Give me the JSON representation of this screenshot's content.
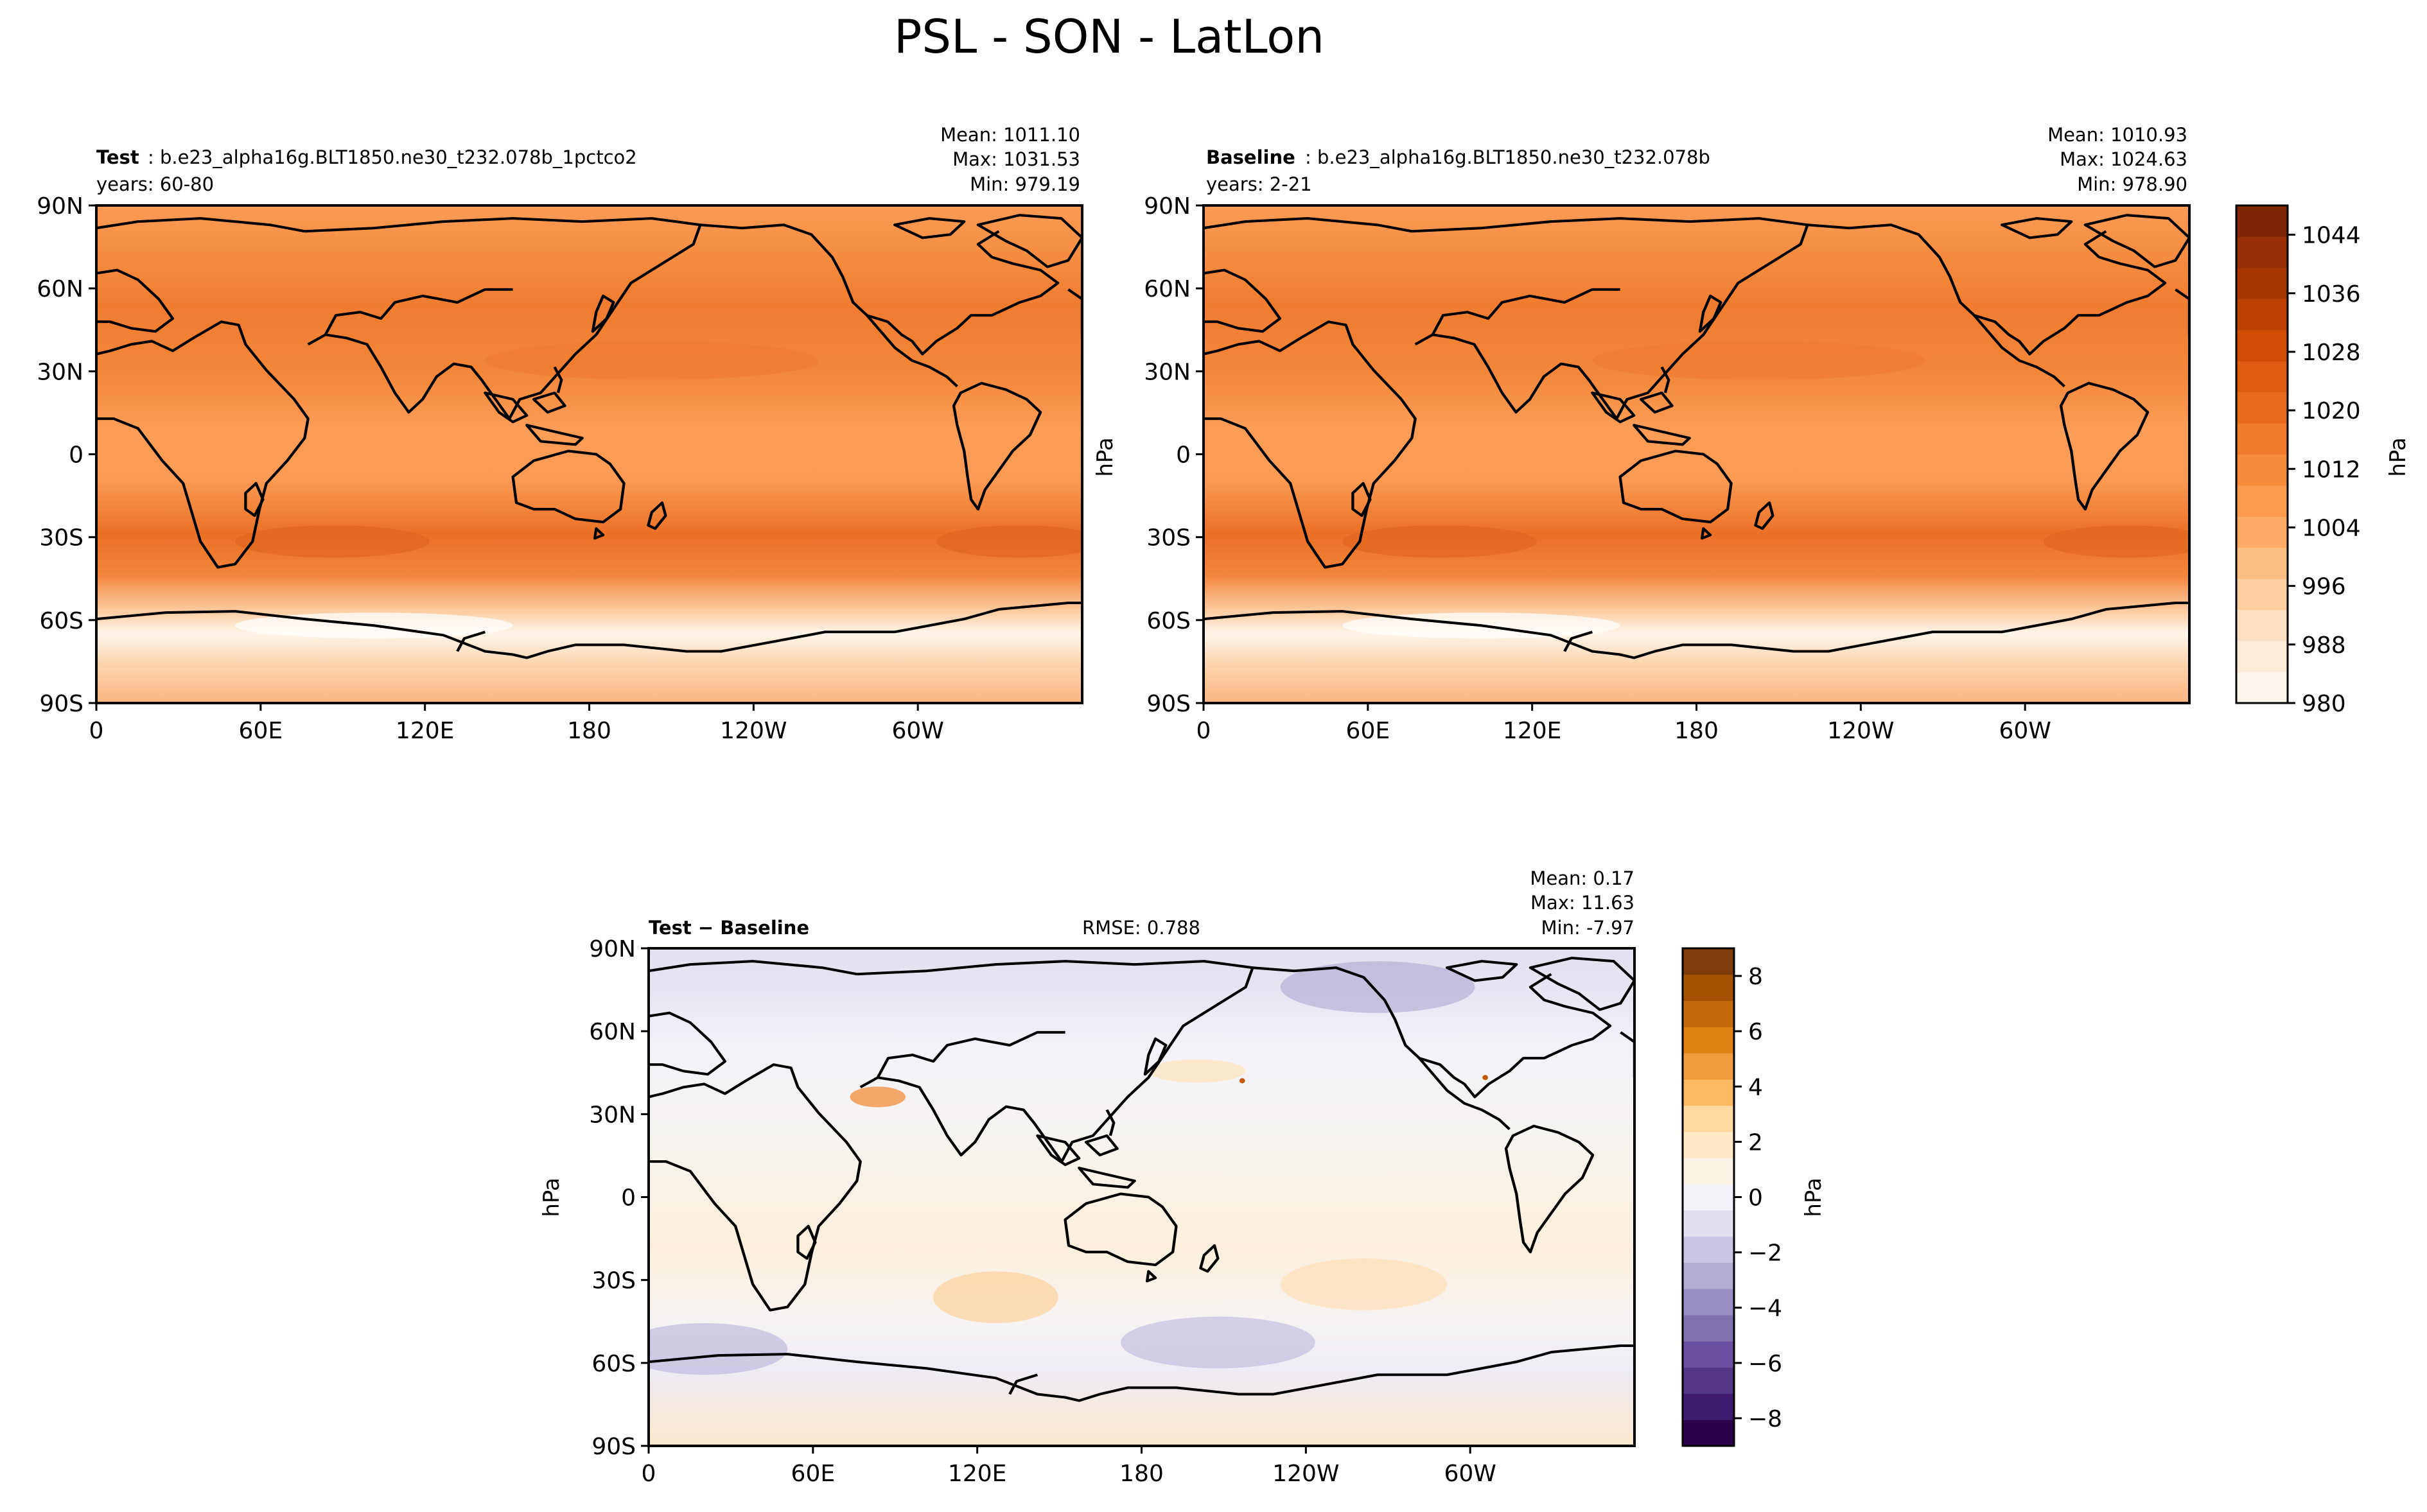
{
  "figure_title": "PSL - SON - LatLon",
  "lon_ticks": [
    "0",
    "60E",
    "120E",
    "180",
    "120W",
    "60W"
  ],
  "lat_ticks": [
    "90N",
    "60N",
    "30N",
    "0",
    "30S",
    "60S",
    "90S"
  ],
  "panels": {
    "test": {
      "label_bold": "Test",
      "label_text": ": b.e23_alpha16g.BLT1850.ne30_t232.078b_1pctco2",
      "years": "years: 60-80",
      "mean": "Mean: 1011.10",
      "max": "Max: 1031.53",
      "min": "Min: 979.19"
    },
    "baseline": {
      "label_bold": "Baseline",
      "label_text": ": b.e23_alpha16g.BLT1850.ne30_t232.078b",
      "years": "years: 2-21",
      "mean": "Mean: 1010.93",
      "max": "Max: 1024.63",
      "min": "Min: 978.90"
    },
    "diff": {
      "label_bold": "Test − Baseline",
      "rmse": "RMSE: 0.788",
      "mean": "Mean:  0.17",
      "max": "Max: 11.63",
      "min": "Min: -7.97"
    }
  },
  "colorbars": {
    "main": {
      "unit": "hPa",
      "unit_left": "hPa",
      "range": [
        980,
        1048
      ],
      "ticks": [
        "980",
        "988",
        "996",
        "1004",
        "1012",
        "1020",
        "1028",
        "1036",
        "1044"
      ],
      "colors": [
        "#fff5eb",
        "#feead5",
        "#fde0c2",
        "#fdcfa0",
        "#fdbe84",
        "#fdab67",
        "#fd9a4e",
        "#f88a3b",
        "#f27b2b",
        "#e86b1b",
        "#df5d10",
        "#d04d06",
        "#bd4102",
        "#a83603",
        "#943003",
        "#7f2704"
      ]
    },
    "diff": {
      "unit": "hPa",
      "unit_left": "hPa",
      "range": [
        -9,
        9
      ],
      "ticks": [
        "−8",
        "−6",
        "−4",
        "−2",
        "0",
        "2",
        "4",
        "6",
        "8"
      ],
      "colors": [
        "#2d004b",
        "#3f1a71",
        "#543688",
        "#6a51a3",
        "#8073ac",
        "#998ec3",
        "#b2abd2",
        "#cbc6e3",
        "#e2dfee",
        "#f3f2f8",
        "#faf3e5",
        "#fee8c5",
        "#fdd8a0",
        "#fdb863",
        "#f09b3c",
        "#e08214",
        "#c36b0b",
        "#a65204",
        "#7f3b08"
      ]
    }
  }
}
